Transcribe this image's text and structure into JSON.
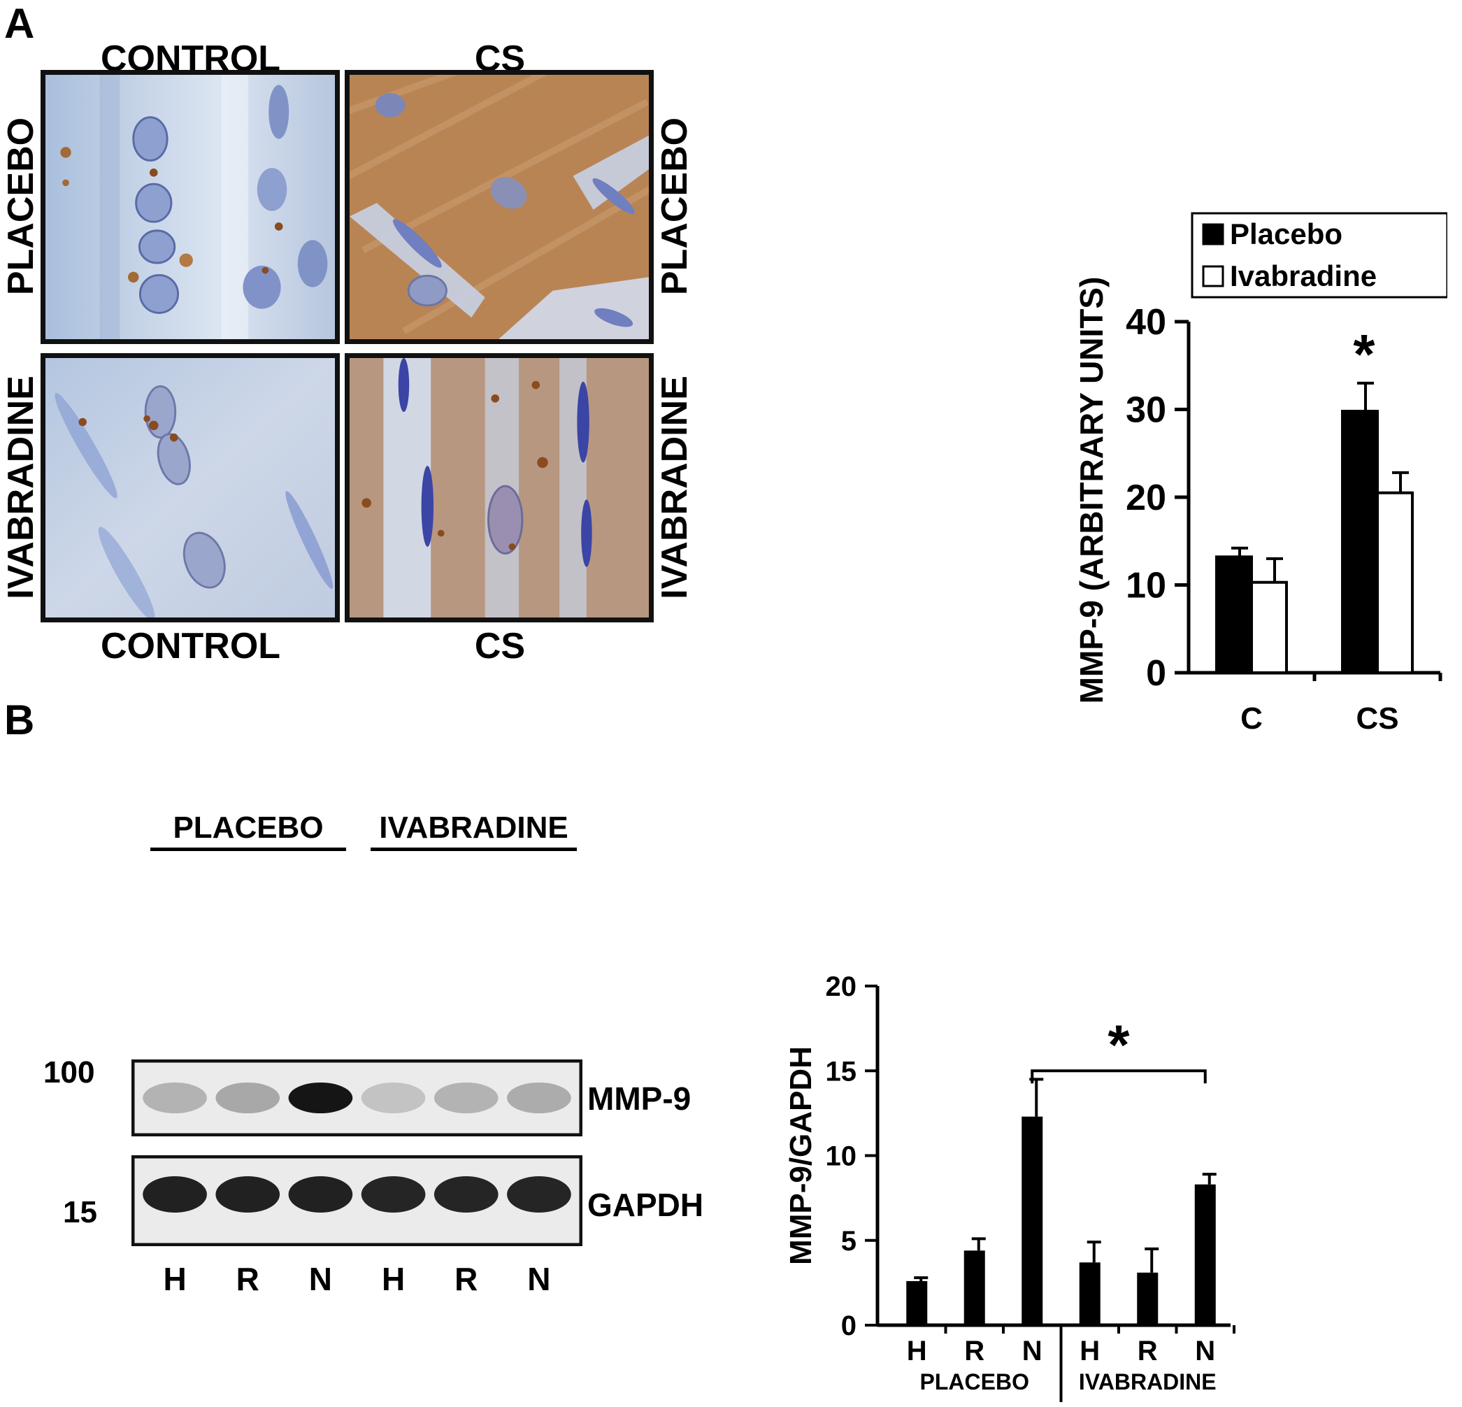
{
  "panel_a": {
    "letter": "A",
    "top_col_labels": [
      "CONTROL",
      "CS"
    ],
    "bottom_col_labels": [
      "CONTROL",
      "CS"
    ],
    "row_labels_left": [
      "PLACEBO",
      "IVABRADINE"
    ],
    "row_labels_right": [
      "PLACEBO",
      "IVABRADINE"
    ]
  },
  "panel_b": {
    "letter": "B",
    "blot": {
      "group_labels": [
        "PLACEBO",
        "IVABRADINE"
      ],
      "mw_markers": [
        "100",
        "15"
      ],
      "band_labels": [
        "MMP-9",
        "GAPDH"
      ],
      "lanes": [
        "H",
        "R",
        "N",
        "H",
        "R",
        "N"
      ],
      "mmp9_intensity": [
        0.25,
        0.3,
        0.95,
        0.18,
        0.25,
        0.28
      ],
      "gapdh_intensity": [
        0.9,
        0.9,
        0.9,
        0.88,
        0.88,
        0.88
      ]
    }
  },
  "chart_data": [
    {
      "type": "bar",
      "categories": [
        "C",
        "CS"
      ],
      "series": [
        {
          "name": "Placebo",
          "values": [
            13.2,
            29.8
          ],
          "errors": [
            1.0,
            3.2
          ],
          "color": "#000000"
        },
        {
          "name": "Ivabradine",
          "values": [
            10.3,
            20.5
          ],
          "errors": [
            2.7,
            2.3
          ],
          "color": "#ffffff"
        }
      ],
      "ylabel": "MMP-9 (ARBITRARY UNITS)",
      "xlabel": "",
      "ylim": [
        0,
        40
      ],
      "yticks": [
        0,
        10,
        20,
        30,
        40
      ],
      "legend_position": "top",
      "annotations": [
        {
          "text": "*",
          "category": "CS",
          "series": "Placebo"
        }
      ],
      "grid": false
    },
    {
      "type": "bar",
      "categories": [
        "H",
        "R",
        "N",
        "H",
        "R",
        "N"
      ],
      "groups": [
        "PLACEBO",
        "IVABRADINE"
      ],
      "values": [
        2.6,
        4.4,
        12.3,
        3.7,
        3.1,
        8.3
      ],
      "errors": [
        0.2,
        0.7,
        2.2,
        1.2,
        1.4,
        0.6
      ],
      "ylabel": "MMP-9/GAPDH",
      "xlabel": "",
      "ylim": [
        0,
        20
      ],
      "yticks": [
        0,
        5,
        10,
        15,
        20
      ],
      "annotations": [
        {
          "text": "*",
          "between": [
            2,
            5
          ]
        }
      ],
      "grid": false,
      "color": "#000000"
    }
  ]
}
